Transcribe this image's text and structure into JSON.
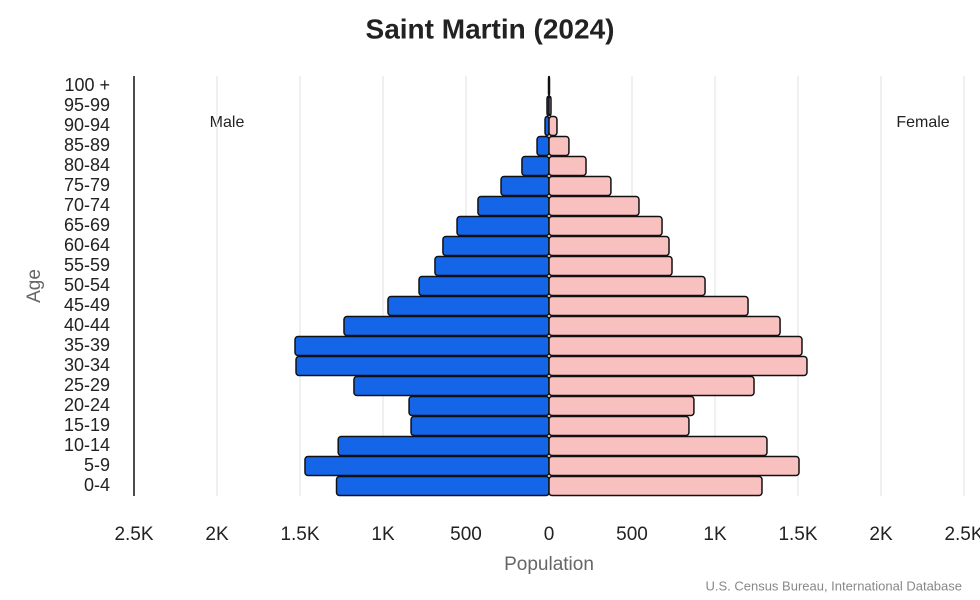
{
  "chart_data": {
    "type": "pyramid",
    "title": "Saint Martin (2024)",
    "x_label": "Population",
    "y_label": "Age",
    "source": "U.S. Census Bureau, International Database",
    "categories": [
      "0-4",
      "5-9",
      "10-14",
      "15-19",
      "20-24",
      "25-29",
      "30-34",
      "35-39",
      "40-44",
      "45-49",
      "50-54",
      "55-59",
      "60-64",
      "65-69",
      "70-74",
      "75-79",
      "80-84",
      "85-89",
      "90-94",
      "95-99",
      "100 +"
    ],
    "series": [
      {
        "name": "Male",
        "color": "#1565e8",
        "side": "left",
        "values": [
          1280,
          1470,
          1270,
          831,
          843,
          1175,
          1524,
          1530,
          1235,
          970,
          783,
          687,
          639,
          554,
          428,
          289,
          163,
          72,
          24,
          12,
          3
        ]
      },
      {
        "name": "Female",
        "color": "#f9c0c0",
        "side": "right",
        "values": [
          1283,
          1506,
          1313,
          843,
          873,
          1235,
          1554,
          1524,
          1392,
          1199,
          940,
          741,
          723,
          681,
          542,
          373,
          223,
          120,
          48,
          12,
          3
        ]
      }
    ],
    "xlim": [
      -2500,
      2500
    ],
    "xticks": [
      {
        "value": -2500,
        "label": "2.5K"
      },
      {
        "value": -2000,
        "label": "2K"
      },
      {
        "value": -1500,
        "label": "1.5K"
      },
      {
        "value": -1000,
        "label": "1K"
      },
      {
        "value": -500,
        "label": "500"
      },
      0,
      {
        "value": 500,
        "label": "500"
      },
      {
        "value": 1000,
        "label": "1K"
      },
      {
        "value": 1500,
        "label": "1.5K"
      },
      {
        "value": 2000,
        "label": "2K"
      },
      {
        "value": 2500,
        "label": "2.5K"
      }
    ],
    "grid": true
  }
}
